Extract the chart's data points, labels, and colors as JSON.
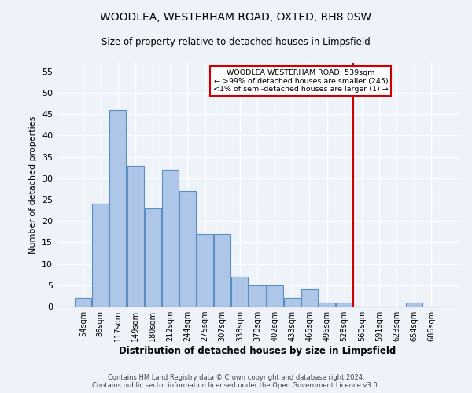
{
  "title": "WOODLEA, WESTERHAM ROAD, OXTED, RH8 0SW",
  "subtitle": "Size of property relative to detached houses in Limpsfield",
  "xlabel": "Distribution of detached houses by size in Limpsfield",
  "ylabel": "Number of detached properties",
  "bar_labels": [
    "54sqm",
    "86sqm",
    "117sqm",
    "149sqm",
    "180sqm",
    "212sqm",
    "244sqm",
    "275sqm",
    "307sqm",
    "338sqm",
    "370sqm",
    "402sqm",
    "433sqm",
    "465sqm",
    "496sqm",
    "528sqm",
    "560sqm",
    "591sqm",
    "623sqm",
    "654sqm",
    "686sqm"
  ],
  "bar_values": [
    2,
    24,
    46,
    33,
    23,
    32,
    27,
    17,
    17,
    7,
    5,
    5,
    2,
    4,
    1,
    1,
    0,
    0,
    0,
    1,
    0
  ],
  "bar_color": "#aec6e8",
  "bar_edge_color": "#5a8fc2",
  "ylim": [
    0,
    57
  ],
  "yticks": [
    0,
    5,
    10,
    15,
    20,
    25,
    30,
    35,
    40,
    45,
    50,
    55
  ],
  "vline_x": 15.5,
  "vline_color": "#cc0000",
  "annotation_title": "WOODLEA WESTERHAM ROAD: 539sqm",
  "annotation_line1": "← >99% of detached houses are smaller (245)",
  "annotation_line2": "<1% of semi-detached houses are larger (1) →",
  "annotation_box_color": "#cc0000",
  "background_color": "#eef2f9",
  "grid_color": "#ffffff",
  "footer1": "Contains HM Land Registry data © Crown copyright and database right 2024.",
  "footer2": "Contains public sector information licensed under the Open Government Licence v3.0."
}
